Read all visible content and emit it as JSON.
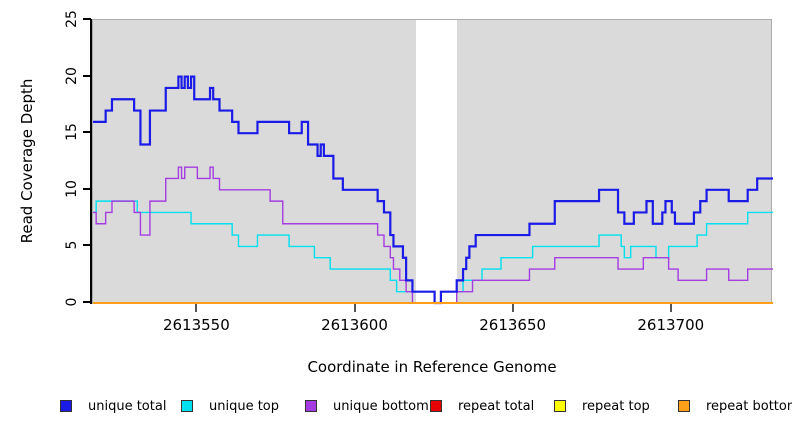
{
  "labels": {
    "y_title": "Read Coverage Depth",
    "x_title": "Coordinate in Reference Genome"
  },
  "panel": {
    "bg": "#dadada",
    "border": "#acacac",
    "band_color": "#ffffff"
  },
  "legend": {
    "items": [
      {
        "label": "unique total",
        "color": "#1b1be8"
      },
      {
        "label": "unique top",
        "color": "#00e0ee"
      },
      {
        "label": "unique bottom",
        "color": "#a43ce2"
      },
      {
        "label": "repeat total",
        "color": "#e60000"
      },
      {
        "label": "repeat top",
        "color": "#ffff00"
      },
      {
        "label": "repeat bottom",
        "color": "#ff9e19"
      }
    ]
  },
  "chart_data": {
    "type": "step-line",
    "title": "",
    "xlabel": "Coordinate in Reference Genome",
    "ylabel": "Read Coverage Depth",
    "grid": false,
    "legend_position": "bottom",
    "x_axis": {
      "min": 2613517,
      "max": 2613732,
      "ticks": [
        2613550,
        2613600,
        2613650,
        2613700
      ]
    },
    "y_axis": {
      "min": 0,
      "max": 25,
      "ticks": [
        0,
        5,
        10,
        15,
        20,
        25
      ]
    },
    "highlight_band": {
      "x_start": 2613619,
      "x_end": 2613632,
      "color": "#ffffff"
    },
    "series": [
      {
        "name": "repeat total",
        "color": "#e60000",
        "width": 1.2,
        "points": [
          [
            2613517,
            0
          ],
          [
            2613732,
            0
          ]
        ]
      },
      {
        "name": "repeat top",
        "color": "#ffff00",
        "width": 1.2,
        "points": [
          [
            2613517,
            0
          ],
          [
            2613732,
            0
          ]
        ]
      },
      {
        "name": "unique top",
        "color": "#00e0ee",
        "width": 1.4,
        "points": [
          [
            2613517,
            8
          ],
          [
            2613518,
            9
          ],
          [
            2613531,
            8
          ],
          [
            2613548,
            7
          ],
          [
            2613561,
            6
          ],
          [
            2613563,
            5
          ],
          [
            2613569,
            6
          ],
          [
            2613579,
            5
          ],
          [
            2613587,
            4
          ],
          [
            2613592,
            3
          ],
          [
            2613611,
            2
          ],
          [
            2613613,
            1
          ],
          [
            2613625,
            0
          ],
          [
            2613627,
            1
          ],
          [
            2613634,
            2
          ],
          [
            2613640,
            3
          ],
          [
            2613646,
            4
          ],
          [
            2613656,
            5
          ],
          [
            2613677,
            6
          ],
          [
            2613684,
            5
          ],
          [
            2613685,
            4
          ],
          [
            2613687,
            5
          ],
          [
            2613695,
            4
          ],
          [
            2613699,
            5
          ],
          [
            2613708,
            6
          ],
          [
            2613711,
            7
          ],
          [
            2613724,
            8
          ],
          [
            2613732,
            8
          ]
        ]
      },
      {
        "name": "unique bottom",
        "color": "#a43ce2",
        "width": 1.4,
        "points": [
          [
            2613517,
            8
          ],
          [
            2613518,
            7
          ],
          [
            2613521,
            8
          ],
          [
            2613523,
            9
          ],
          [
            2613530,
            8
          ],
          [
            2613532,
            6
          ],
          [
            2613535,
            9
          ],
          [
            2613540,
            11
          ],
          [
            2613544,
            12
          ],
          [
            2613545,
            11
          ],
          [
            2613546,
            12
          ],
          [
            2613550,
            11
          ],
          [
            2613554,
            12
          ],
          [
            2613555,
            11
          ],
          [
            2613557,
            10
          ],
          [
            2613573,
            9
          ],
          [
            2613577,
            7
          ],
          [
            2613607,
            6
          ],
          [
            2613609,
            5
          ],
          [
            2613611,
            4
          ],
          [
            2613612,
            3
          ],
          [
            2613614,
            2
          ],
          [
            2613616,
            1
          ],
          [
            2613618,
            0
          ],
          [
            2613632,
            1
          ],
          [
            2613637,
            2
          ],
          [
            2613655,
            3
          ],
          [
            2613663,
            4
          ],
          [
            2613683,
            3
          ],
          [
            2613691,
            4
          ],
          [
            2613699,
            3
          ],
          [
            2613702,
            2
          ],
          [
            2613711,
            3
          ],
          [
            2613718,
            2
          ],
          [
            2613724,
            3
          ],
          [
            2613732,
            3
          ]
        ]
      },
      {
        "name": "unique total",
        "color": "#1b1be8",
        "width": 2.2,
        "points": [
          [
            2613517,
            16
          ],
          [
            2613521,
            17
          ],
          [
            2613523,
            18
          ],
          [
            2613530,
            17
          ],
          [
            2613532,
            14
          ],
          [
            2613535,
            17
          ],
          [
            2613540,
            19
          ],
          [
            2613544,
            20
          ],
          [
            2613545,
            19
          ],
          [
            2613546,
            20
          ],
          [
            2613547,
            19
          ],
          [
            2613548,
            20
          ],
          [
            2613549,
            18
          ],
          [
            2613554,
            19
          ],
          [
            2613555,
            18
          ],
          [
            2613557,
            17
          ],
          [
            2613561,
            16
          ],
          [
            2613563,
            15
          ],
          [
            2613569,
            16
          ],
          [
            2613579,
            15
          ],
          [
            2613583,
            16
          ],
          [
            2613585,
            14
          ],
          [
            2613588,
            13
          ],
          [
            2613589,
            14
          ],
          [
            2613590,
            13
          ],
          [
            2613593,
            11
          ],
          [
            2613596,
            10
          ],
          [
            2613607,
            9
          ],
          [
            2613609,
            8
          ],
          [
            2613611,
            6
          ],
          [
            2613612,
            5
          ],
          [
            2613615,
            4
          ],
          [
            2613616,
            2
          ],
          [
            2613618,
            1
          ],
          [
            2613625,
            0
          ],
          [
            2613627,
            1
          ],
          [
            2613632,
            2
          ],
          [
            2613634,
            3
          ],
          [
            2613635,
            4
          ],
          [
            2613636,
            5
          ],
          [
            2613638,
            6
          ],
          [
            2613655,
            7
          ],
          [
            2613663,
            9
          ],
          [
            2613677,
            10
          ],
          [
            2613683,
            8
          ],
          [
            2613685,
            7
          ],
          [
            2613688,
            8
          ],
          [
            2613692,
            9
          ],
          [
            2613694,
            7
          ],
          [
            2613697,
            8
          ],
          [
            2613698,
            9
          ],
          [
            2613700,
            8
          ],
          [
            2613701,
            7
          ],
          [
            2613707,
            8
          ],
          [
            2613709,
            9
          ],
          [
            2613711,
            10
          ],
          [
            2613718,
            9
          ],
          [
            2613724,
            10
          ],
          [
            2613727,
            11
          ],
          [
            2613732,
            11
          ]
        ]
      },
      {
        "name": "repeat bottom",
        "color": "#ff9e19",
        "width": 2,
        "points": [
          [
            2613517,
            0
          ],
          [
            2613732,
            0
          ]
        ]
      }
    ]
  }
}
